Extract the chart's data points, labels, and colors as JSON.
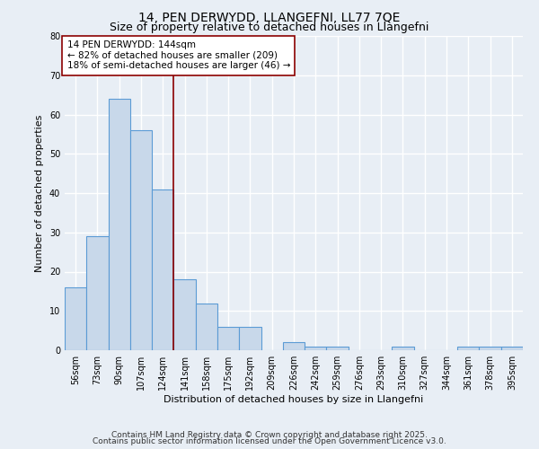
{
  "title1": "14, PEN DERWYDD, LLANGEFNI, LL77 7QE",
  "title2": "Size of property relative to detached houses in Llangefni",
  "xlabel": "Distribution of detached houses by size in Llangefni",
  "ylabel": "Number of detached properties",
  "categories": [
    "56sqm",
    "73sqm",
    "90sqm",
    "107sqm",
    "124sqm",
    "141sqm",
    "158sqm",
    "175sqm",
    "192sqm",
    "209sqm",
    "226sqm",
    "242sqm",
    "259sqm",
    "276sqm",
    "293sqm",
    "310sqm",
    "327sqm",
    "344sqm",
    "361sqm",
    "378sqm",
    "395sqm"
  ],
  "values": [
    16,
    29,
    64,
    56,
    41,
    18,
    12,
    6,
    6,
    0,
    2,
    1,
    1,
    0,
    0,
    1,
    0,
    0,
    1,
    1,
    1
  ],
  "bar_color": "#c8d8ea",
  "bar_edge_color": "#5b9bd5",
  "property_line_index": 5,
  "property_line_color": "#8b0000",
  "annotation_text": "14 PEN DERWYDD: 144sqm\n← 82% of detached houses are smaller (209)\n18% of semi-detached houses are larger (46) →",
  "annotation_box_color": "white",
  "annotation_box_edge": "#8b0000",
  "ylim": [
    0,
    80
  ],
  "yticks": [
    0,
    10,
    20,
    30,
    40,
    50,
    60,
    70,
    80
  ],
  "footnote1": "Contains HM Land Registry data © Crown copyright and database right 2025.",
  "footnote2": "Contains public sector information licensed under the Open Government Licence v3.0.",
  "bg_color": "#e8eef5",
  "plot_bg_color": "#e8eef5",
  "grid_color": "white",
  "title_fontsize": 10,
  "subtitle_fontsize": 9,
  "axis_label_fontsize": 8,
  "tick_fontsize": 7,
  "annotation_fontsize": 7.5,
  "footnote_fontsize": 6.5
}
